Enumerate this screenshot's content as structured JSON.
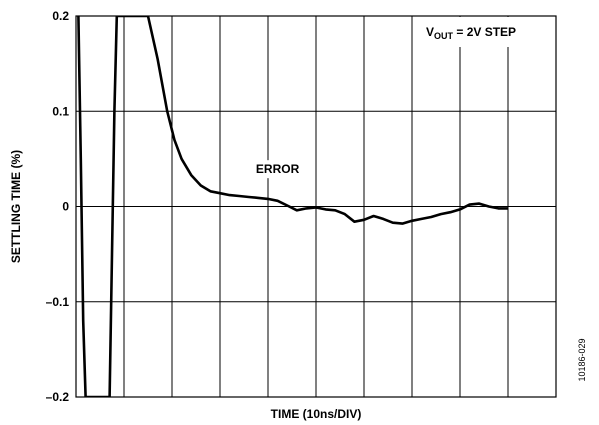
{
  "chart_data": {
    "type": "line",
    "xlabel": "TIME (10ns/DIV)",
    "ylabel": "SETTLING TIME (%)",
    "xlim": [
      0,
      10
    ],
    "ylim": [
      -0.2,
      0.2
    ],
    "y_ticks": [
      -0.2,
      -0.1,
      0,
      0.1,
      0.2
    ],
    "y_tick_labels": [
      "–0.2",
      "–0.1",
      "0",
      "0.1",
      "0.2"
    ],
    "x_divisions": 10,
    "grid": true,
    "legend_box": {
      "text_main": "V",
      "text_sub": "OUT",
      "text_rest": " = 2V STEP",
      "placement": "top-right"
    },
    "annotations": [
      {
        "text": "ERROR",
        "x": 4.2,
        "y": 0.035
      }
    ],
    "figure_id": "10186-029",
    "series": [
      {
        "color": "#000000",
        "points": [
          [
            0.05,
            0.2
          ],
          [
            0.1,
            0.05
          ],
          [
            0.15,
            -0.12
          ],
          [
            0.2,
            -0.2
          ],
          [
            0.7,
            -0.2
          ],
          [
            0.75,
            -0.05
          ],
          [
            0.8,
            0.1
          ],
          [
            0.85,
            0.2
          ],
          [
            1.5,
            0.2
          ],
          [
            1.7,
            0.155
          ],
          [
            1.9,
            0.1
          ],
          [
            2.05,
            0.07
          ],
          [
            2.2,
            0.05
          ],
          [
            2.4,
            0.033
          ],
          [
            2.6,
            0.022
          ],
          [
            2.8,
            0.016
          ],
          [
            3.0,
            0.014
          ],
          [
            3.2,
            0.012
          ],
          [
            3.4,
            0.011
          ],
          [
            3.6,
            0.01
          ],
          [
            3.8,
            0.009
          ],
          [
            4.0,
            0.008
          ],
          [
            4.2,
            0.006
          ],
          [
            4.4,
            0.001
          ],
          [
            4.6,
            -0.004
          ],
          [
            4.8,
            -0.002
          ],
          [
            5.0,
            -0.001
          ],
          [
            5.2,
            -0.003
          ],
          [
            5.4,
            -0.004
          ],
          [
            5.6,
            -0.008
          ],
          [
            5.8,
            -0.016
          ],
          [
            6.0,
            -0.014
          ],
          [
            6.2,
            -0.01
          ],
          [
            6.4,
            -0.013
          ],
          [
            6.6,
            -0.017
          ],
          [
            6.8,
            -0.018
          ],
          [
            7.0,
            -0.015
          ],
          [
            7.2,
            -0.013
          ],
          [
            7.4,
            -0.011
          ],
          [
            7.6,
            -0.008
          ],
          [
            7.8,
            -0.006
          ],
          [
            8.0,
            -0.003
          ],
          [
            8.2,
            0.002
          ],
          [
            8.4,
            0.003
          ],
          [
            8.6,
            0.0
          ],
          [
            8.8,
            -0.002
          ],
          [
            9.0,
            -0.002
          ]
        ]
      }
    ]
  }
}
